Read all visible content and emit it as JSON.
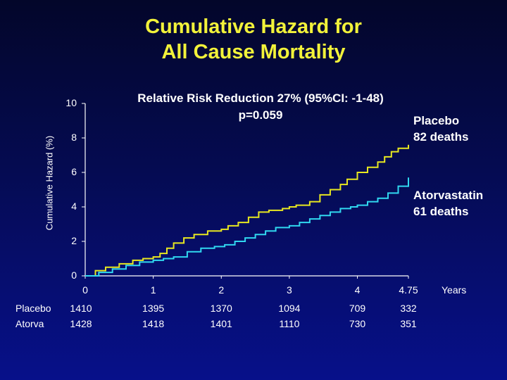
{
  "chart_data": {
    "type": "line",
    "title_line1": "Cumulative Hazard for",
    "title_line2": "All Cause Mortality",
    "subtitle_line1": "Relative Risk Reduction 27% (95%CI: -1-48)",
    "subtitle_line2": "p=0.059",
    "ylabel": "Cumulative Hazard (%)",
    "xunit": "Years",
    "ylim": [
      0,
      10
    ],
    "xlim": [
      0,
      4.75
    ],
    "yticks": [
      0,
      2,
      4,
      6,
      8,
      10
    ],
    "xticks": [
      0,
      1,
      2,
      3,
      4,
      4.75
    ],
    "xtick_labels": [
      "0",
      "1",
      "2",
      "3",
      "4",
      "4.75"
    ],
    "series": [
      {
        "name_line1": "Placebo",
        "name_line2": "82 deaths",
        "color": "#e8e820",
        "x": [
          0,
          0.15,
          0.3,
          0.5,
          0.7,
          0.85,
          1.0,
          1.1,
          1.2,
          1.3,
          1.45,
          1.6,
          1.8,
          2.0,
          2.1,
          2.25,
          2.4,
          2.55,
          2.7,
          2.9,
          3.0,
          3.1,
          3.3,
          3.45,
          3.6,
          3.75,
          3.85,
          4.0,
          4.15,
          4.3,
          4.4,
          4.5,
          4.6,
          4.75
        ],
        "y": [
          0,
          0.3,
          0.5,
          0.7,
          0.9,
          1.0,
          1.1,
          1.3,
          1.6,
          1.9,
          2.2,
          2.4,
          2.6,
          2.7,
          2.9,
          3.1,
          3.4,
          3.7,
          3.8,
          3.9,
          4.0,
          4.1,
          4.3,
          4.7,
          5.0,
          5.3,
          5.6,
          6.0,
          6.3,
          6.6,
          6.9,
          7.2,
          7.4,
          7.6
        ]
      },
      {
        "name_line1": "Atorvastatin",
        "name_line2": "61 deaths",
        "color": "#30d8f0",
        "x": [
          0,
          0.2,
          0.4,
          0.6,
          0.8,
          1.0,
          1.15,
          1.3,
          1.5,
          1.7,
          1.9,
          2.05,
          2.2,
          2.35,
          2.5,
          2.65,
          2.8,
          3.0,
          3.15,
          3.3,
          3.45,
          3.6,
          3.75,
          3.9,
          4.0,
          4.15,
          4.3,
          4.45,
          4.6,
          4.75
        ],
        "y": [
          0,
          0.2,
          0.4,
          0.6,
          0.8,
          0.9,
          1.0,
          1.1,
          1.4,
          1.6,
          1.7,
          1.8,
          2.0,
          2.2,
          2.4,
          2.6,
          2.8,
          2.9,
          3.1,
          3.3,
          3.5,
          3.7,
          3.9,
          4.0,
          4.1,
          4.3,
          4.5,
          4.8,
          5.2,
          5.7
        ]
      }
    ],
    "risk_table": {
      "rows": [
        {
          "label": "Placebo",
          "values": [
            "1410",
            "1395",
            "1370",
            "1094",
            "709",
            "332"
          ]
        },
        {
          "label": "Atorva",
          "values": [
            "1428",
            "1418",
            "1401",
            "1110",
            "730",
            "351"
          ]
        }
      ]
    },
    "axis_color": "#ffffff"
  }
}
